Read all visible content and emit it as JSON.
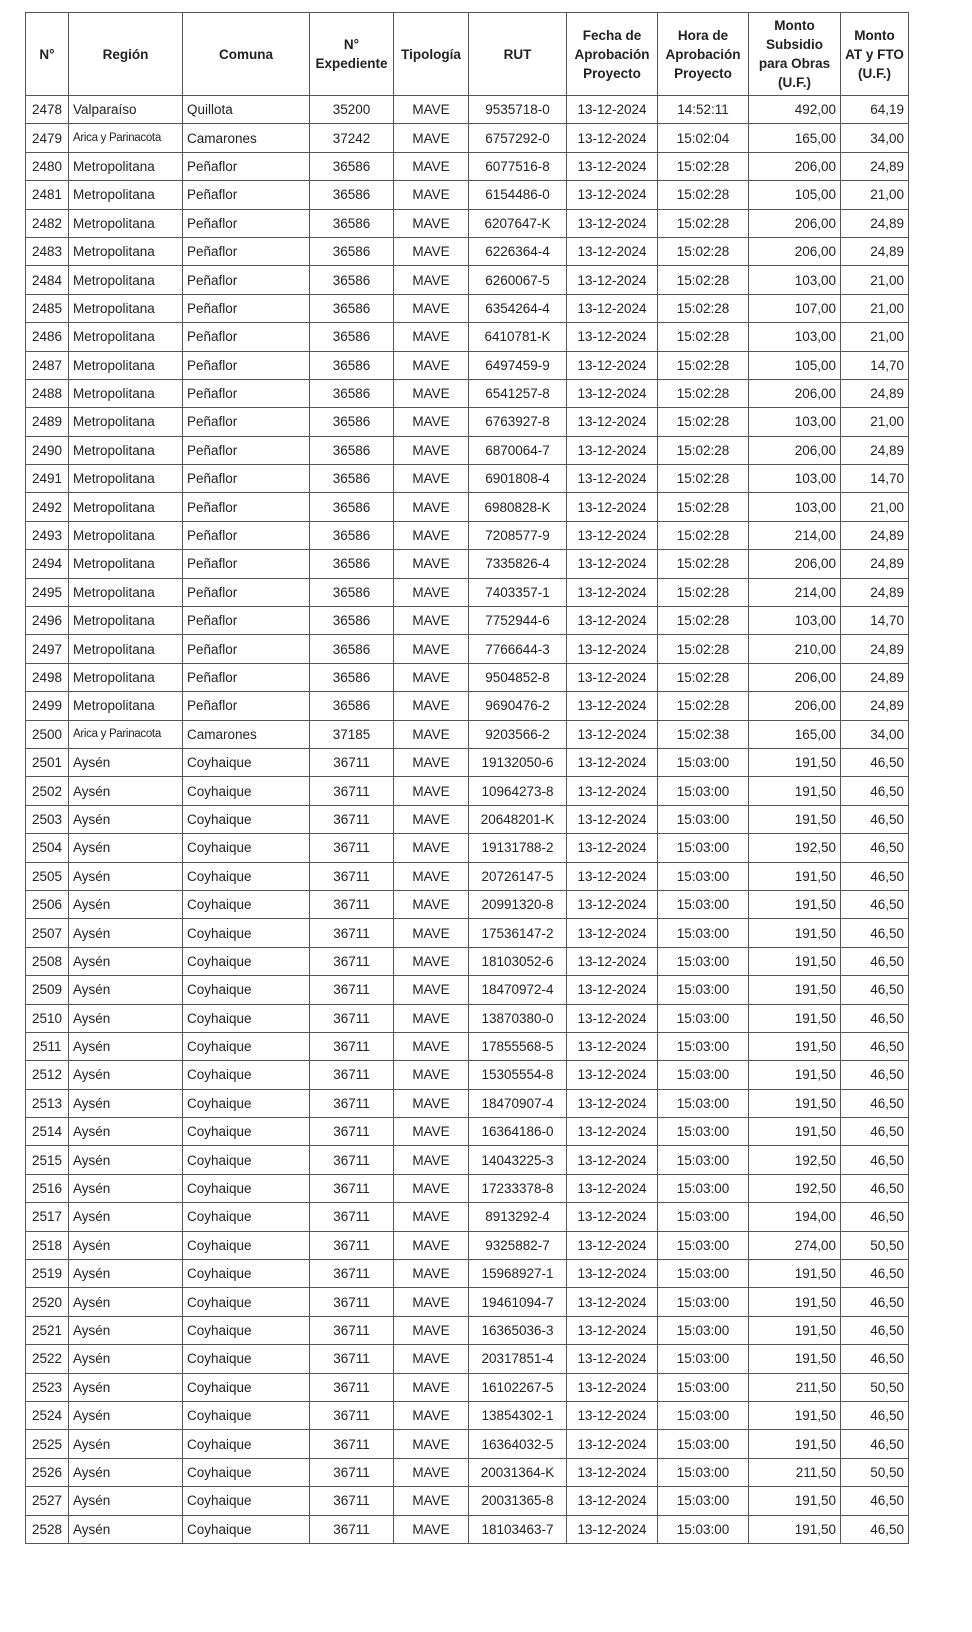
{
  "columns": [
    "N°",
    "Región",
    "Comuna",
    "N° Expediente",
    "Tipología",
    "RUT",
    "Fecha de Aprobación Proyecto",
    "Hora de Aprobación Proyecto",
    "Monto Subsidio para Obras (U.F.)",
    "Monto AT y FTO (U.F.)"
  ],
  "rows": [
    [
      "2478",
      "Valparaíso",
      "Quillota",
      "35200",
      "MAVE",
      "9535718-0",
      "13-12-2024",
      "14:52:11",
      "492,00",
      "64,19"
    ],
    [
      "2479",
      "Arica y Parinacota",
      "Camarones",
      "37242",
      "MAVE",
      "6757292-0",
      "13-12-2024",
      "15:02:04",
      "165,00",
      "34,00"
    ],
    [
      "2480",
      "Metropolitana",
      "Peñaflor",
      "36586",
      "MAVE",
      "6077516-8",
      "13-12-2024",
      "15:02:28",
      "206,00",
      "24,89"
    ],
    [
      "2481",
      "Metropolitana",
      "Peñaflor",
      "36586",
      "MAVE",
      "6154486-0",
      "13-12-2024",
      "15:02:28",
      "105,00",
      "21,00"
    ],
    [
      "2482",
      "Metropolitana",
      "Peñaflor",
      "36586",
      "MAVE",
      "6207647-K",
      "13-12-2024",
      "15:02:28",
      "206,00",
      "24,89"
    ],
    [
      "2483",
      "Metropolitana",
      "Peñaflor",
      "36586",
      "MAVE",
      "6226364-4",
      "13-12-2024",
      "15:02:28",
      "206,00",
      "24,89"
    ],
    [
      "2484",
      "Metropolitana",
      "Peñaflor",
      "36586",
      "MAVE",
      "6260067-5",
      "13-12-2024",
      "15:02:28",
      "103,00",
      "21,00"
    ],
    [
      "2485",
      "Metropolitana",
      "Peñaflor",
      "36586",
      "MAVE",
      "6354264-4",
      "13-12-2024",
      "15:02:28",
      "107,00",
      "21,00"
    ],
    [
      "2486",
      "Metropolitana",
      "Peñaflor",
      "36586",
      "MAVE",
      "6410781-K",
      "13-12-2024",
      "15:02:28",
      "103,00",
      "21,00"
    ],
    [
      "2487",
      "Metropolitana",
      "Peñaflor",
      "36586",
      "MAVE",
      "6497459-9",
      "13-12-2024",
      "15:02:28",
      "105,00",
      "14,70"
    ],
    [
      "2488",
      "Metropolitana",
      "Peñaflor",
      "36586",
      "MAVE",
      "6541257-8",
      "13-12-2024",
      "15:02:28",
      "206,00",
      "24,89"
    ],
    [
      "2489",
      "Metropolitana",
      "Peñaflor",
      "36586",
      "MAVE",
      "6763927-8",
      "13-12-2024",
      "15:02:28",
      "103,00",
      "21,00"
    ],
    [
      "2490",
      "Metropolitana",
      "Peñaflor",
      "36586",
      "MAVE",
      "6870064-7",
      "13-12-2024",
      "15:02:28",
      "206,00",
      "24,89"
    ],
    [
      "2491",
      "Metropolitana",
      "Peñaflor",
      "36586",
      "MAVE",
      "6901808-4",
      "13-12-2024",
      "15:02:28",
      "103,00",
      "14,70"
    ],
    [
      "2492",
      "Metropolitana",
      "Peñaflor",
      "36586",
      "MAVE",
      "6980828-K",
      "13-12-2024",
      "15:02:28",
      "103,00",
      "21,00"
    ],
    [
      "2493",
      "Metropolitana",
      "Peñaflor",
      "36586",
      "MAVE",
      "7208577-9",
      "13-12-2024",
      "15:02:28",
      "214,00",
      "24,89"
    ],
    [
      "2494",
      "Metropolitana",
      "Peñaflor",
      "36586",
      "MAVE",
      "7335826-4",
      "13-12-2024",
      "15:02:28",
      "206,00",
      "24,89"
    ],
    [
      "2495",
      "Metropolitana",
      "Peñaflor",
      "36586",
      "MAVE",
      "7403357-1",
      "13-12-2024",
      "15:02:28",
      "214,00",
      "24,89"
    ],
    [
      "2496",
      "Metropolitana",
      "Peñaflor",
      "36586",
      "MAVE",
      "7752944-6",
      "13-12-2024",
      "15:02:28",
      "103,00",
      "14,70"
    ],
    [
      "2497",
      "Metropolitana",
      "Peñaflor",
      "36586",
      "MAVE",
      "7766644-3",
      "13-12-2024",
      "15:02:28",
      "210,00",
      "24,89"
    ],
    [
      "2498",
      "Metropolitana",
      "Peñaflor",
      "36586",
      "MAVE",
      "9504852-8",
      "13-12-2024",
      "15:02:28",
      "206,00",
      "24,89"
    ],
    [
      "2499",
      "Metropolitana",
      "Peñaflor",
      "36586",
      "MAVE",
      "9690476-2",
      "13-12-2024",
      "15:02:28",
      "206,00",
      "24,89"
    ],
    [
      "2500",
      "Arica y Parinacota",
      "Camarones",
      "37185",
      "MAVE",
      "9203566-2",
      "13-12-2024",
      "15:02:38",
      "165,00",
      "34,00"
    ],
    [
      "2501",
      "Aysén",
      "Coyhaique",
      "36711",
      "MAVE",
      "19132050-6",
      "13-12-2024",
      "15:03:00",
      "191,50",
      "46,50"
    ],
    [
      "2502",
      "Aysén",
      "Coyhaique",
      "36711",
      "MAVE",
      "10964273-8",
      "13-12-2024",
      "15:03:00",
      "191,50",
      "46,50"
    ],
    [
      "2503",
      "Aysén",
      "Coyhaique",
      "36711",
      "MAVE",
      "20648201-K",
      "13-12-2024",
      "15:03:00",
      "191,50",
      "46,50"
    ],
    [
      "2504",
      "Aysén",
      "Coyhaique",
      "36711",
      "MAVE",
      "19131788-2",
      "13-12-2024",
      "15:03:00",
      "192,50",
      "46,50"
    ],
    [
      "2505",
      "Aysén",
      "Coyhaique",
      "36711",
      "MAVE",
      "20726147-5",
      "13-12-2024",
      "15:03:00",
      "191,50",
      "46,50"
    ],
    [
      "2506",
      "Aysén",
      "Coyhaique",
      "36711",
      "MAVE",
      "20991320-8",
      "13-12-2024",
      "15:03:00",
      "191,50",
      "46,50"
    ],
    [
      "2507",
      "Aysén",
      "Coyhaique",
      "36711",
      "MAVE",
      "17536147-2",
      "13-12-2024",
      "15:03:00",
      "191,50",
      "46,50"
    ],
    [
      "2508",
      "Aysén",
      "Coyhaique",
      "36711",
      "MAVE",
      "18103052-6",
      "13-12-2024",
      "15:03:00",
      "191,50",
      "46,50"
    ],
    [
      "2509",
      "Aysén",
      "Coyhaique",
      "36711",
      "MAVE",
      "18470972-4",
      "13-12-2024",
      "15:03:00",
      "191,50",
      "46,50"
    ],
    [
      "2510",
      "Aysén",
      "Coyhaique",
      "36711",
      "MAVE",
      "13870380-0",
      "13-12-2024",
      "15:03:00",
      "191,50",
      "46,50"
    ],
    [
      "2511",
      "Aysén",
      "Coyhaique",
      "36711",
      "MAVE",
      "17855568-5",
      "13-12-2024",
      "15:03:00",
      "191,50",
      "46,50"
    ],
    [
      "2512",
      "Aysén",
      "Coyhaique",
      "36711",
      "MAVE",
      "15305554-8",
      "13-12-2024",
      "15:03:00",
      "191,50",
      "46,50"
    ],
    [
      "2513",
      "Aysén",
      "Coyhaique",
      "36711",
      "MAVE",
      "18470907-4",
      "13-12-2024",
      "15:03:00",
      "191,50",
      "46,50"
    ],
    [
      "2514",
      "Aysén",
      "Coyhaique",
      "36711",
      "MAVE",
      "16364186-0",
      "13-12-2024",
      "15:03:00",
      "191,50",
      "46,50"
    ],
    [
      "2515",
      "Aysén",
      "Coyhaique",
      "36711",
      "MAVE",
      "14043225-3",
      "13-12-2024",
      "15:03:00",
      "192,50",
      "46,50"
    ],
    [
      "2516",
      "Aysén",
      "Coyhaique",
      "36711",
      "MAVE",
      "17233378-8",
      "13-12-2024",
      "15:03:00",
      "192,50",
      "46,50"
    ],
    [
      "2517",
      "Aysén",
      "Coyhaique",
      "36711",
      "MAVE",
      "8913292-4",
      "13-12-2024",
      "15:03:00",
      "194,00",
      "46,50"
    ],
    [
      "2518",
      "Aysén",
      "Coyhaique",
      "36711",
      "MAVE",
      "9325882-7",
      "13-12-2024",
      "15:03:00",
      "274,00",
      "50,50"
    ],
    [
      "2519",
      "Aysén",
      "Coyhaique",
      "36711",
      "MAVE",
      "15968927-1",
      "13-12-2024",
      "15:03:00",
      "191,50",
      "46,50"
    ],
    [
      "2520",
      "Aysén",
      "Coyhaique",
      "36711",
      "MAVE",
      "19461094-7",
      "13-12-2024",
      "15:03:00",
      "191,50",
      "46,50"
    ],
    [
      "2521",
      "Aysén",
      "Coyhaique",
      "36711",
      "MAVE",
      "16365036-3",
      "13-12-2024",
      "15:03:00",
      "191,50",
      "46,50"
    ],
    [
      "2522",
      "Aysén",
      "Coyhaique",
      "36711",
      "MAVE",
      "20317851-4",
      "13-12-2024",
      "15:03:00",
      "191,50",
      "46,50"
    ],
    [
      "2523",
      "Aysén",
      "Coyhaique",
      "36711",
      "MAVE",
      "16102267-5",
      "13-12-2024",
      "15:03:00",
      "211,50",
      "50,50"
    ],
    [
      "2524",
      "Aysén",
      "Coyhaique",
      "36711",
      "MAVE",
      "13854302-1",
      "13-12-2024",
      "15:03:00",
      "191,50",
      "46,50"
    ],
    [
      "2525",
      "Aysén",
      "Coyhaique",
      "36711",
      "MAVE",
      "16364032-5",
      "13-12-2024",
      "15:03:00",
      "191,50",
      "46,50"
    ],
    [
      "2526",
      "Aysén",
      "Coyhaique",
      "36711",
      "MAVE",
      "20031364-K",
      "13-12-2024",
      "15:03:00",
      "211,50",
      "50,50"
    ],
    [
      "2527",
      "Aysén",
      "Coyhaique",
      "36711",
      "MAVE",
      "20031365-8",
      "13-12-2024",
      "15:03:00",
      "191,50",
      "46,50"
    ],
    [
      "2528",
      "Aysén",
      "Coyhaique",
      "36711",
      "MAVE",
      "18103463-7",
      "13-12-2024",
      "15:03:00",
      "191,50",
      "46,50"
    ]
  ]
}
